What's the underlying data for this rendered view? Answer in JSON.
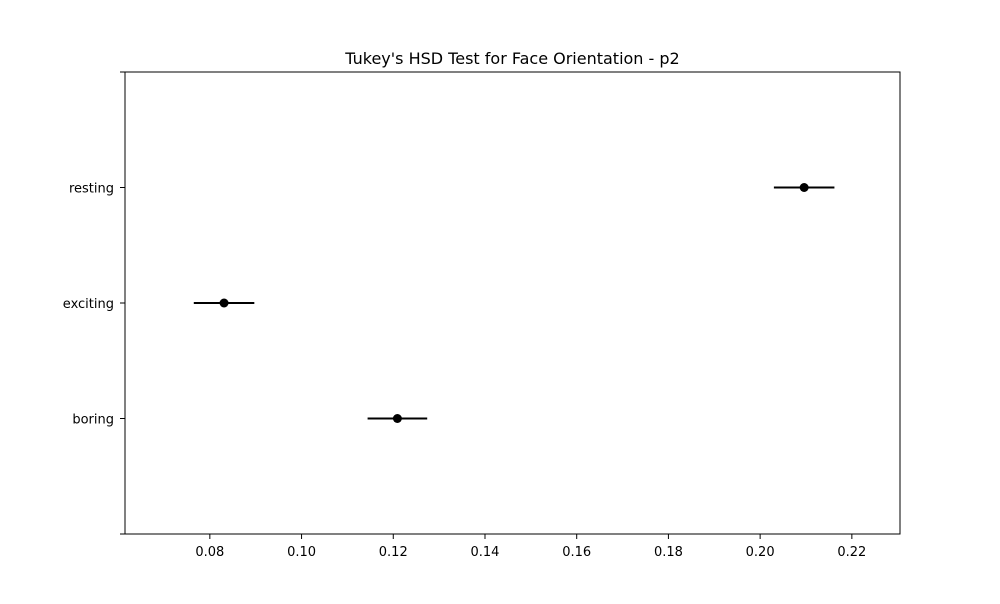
{
  "chart_data": {
    "type": "scatter",
    "title": "Tukey's HSD Test for Face Orientation - p2",
    "xlabel": "",
    "ylabel": "",
    "xlim": [
      0.0615,
      0.2305
    ],
    "xticks": [
      "0.08",
      "0.10",
      "0.12",
      "0.14",
      "0.16",
      "0.18",
      "0.20",
      "0.22"
    ],
    "categories": [
      "boring",
      "exciting",
      "resting"
    ],
    "points": [
      {
        "group": "boring",
        "mean": 0.1209,
        "lower": 0.1144,
        "upper": 0.1274
      },
      {
        "group": "exciting",
        "mean": 0.0831,
        "lower": 0.0765,
        "upper": 0.0897
      },
      {
        "group": "resting",
        "mean": 0.2096,
        "lower": 0.203,
        "upper": 0.2162
      }
    ],
    "grid": false,
    "legend": "none",
    "colors": {
      "marker": "#000000",
      "errorbar": "#000000",
      "axes": "#000000",
      "background": "#ffffff"
    }
  }
}
